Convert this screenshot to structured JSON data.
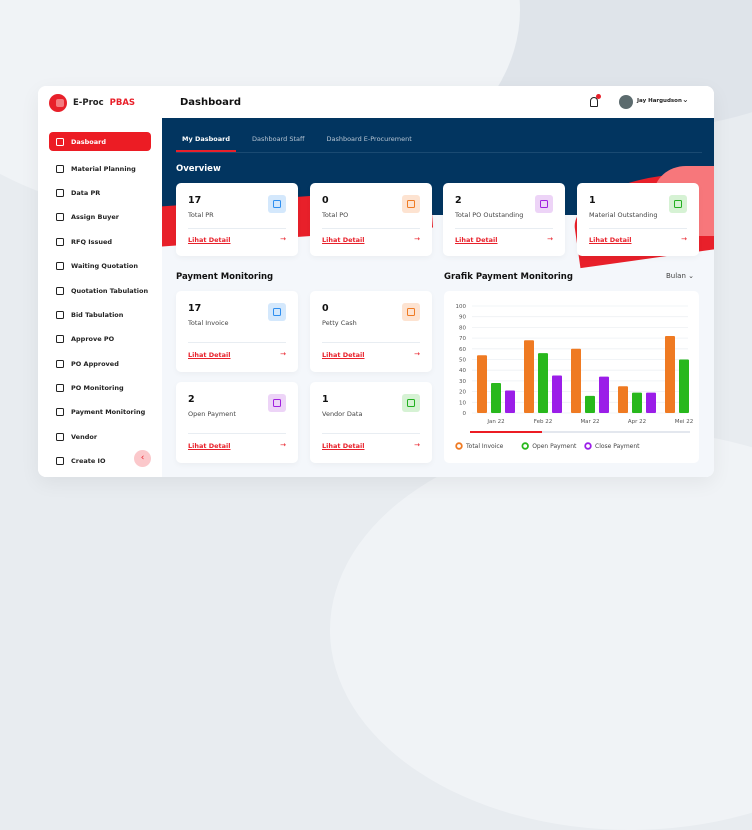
{
  "app": {
    "brand": "E-Proc",
    "brand_accent": "PBAS",
    "accent": "#ec1c24",
    "navy": "#023560"
  },
  "sidebar": {
    "items": [
      {
        "label": "Dasboard",
        "icon": "grid-icon",
        "active": true
      },
      {
        "label": "Material Planning",
        "icon": "clipboard-check-icon"
      },
      {
        "label": "Data PR",
        "icon": "document-icon"
      },
      {
        "label": "Assign Buyer",
        "icon": "user-assign-icon"
      },
      {
        "label": "RFQ Issued",
        "icon": "document-lock-icon"
      },
      {
        "label": "Waiting Quotation",
        "icon": "document-clock-icon"
      },
      {
        "label": "Quotation Tabulation",
        "icon": "document-table-icon"
      },
      {
        "label": "Bid Tabulation",
        "icon": "document-list-icon"
      },
      {
        "label": "Approve PO",
        "icon": "cart-check-icon"
      },
      {
        "label": "PO Approved",
        "icon": "cart-icon"
      },
      {
        "label": "PO Monitoring",
        "icon": "cart-monitor-icon"
      },
      {
        "label": "Payment Monitoring",
        "icon": "card-icon"
      },
      {
        "label": "Vendor",
        "icon": "store-icon"
      },
      {
        "label": "Create IO",
        "icon": "io-icon"
      }
    ],
    "collapse_icon": "chevron-left-icon"
  },
  "header": {
    "title": "Dashboard",
    "user": "Jay Hargudson",
    "notification": true
  },
  "tabs": [
    {
      "label": "My Dasboard",
      "active": true
    },
    {
      "label": "Dashboard Staff"
    },
    {
      "label": "Dashboard E-Procurement"
    }
  ],
  "overview": {
    "title": "Overview",
    "cards": [
      {
        "value": "17",
        "label": "Total PR",
        "link": "Lihat Detail",
        "icon": "document-icon",
        "color": "#2f8ff0",
        "bg": "#d4e8fc"
      },
      {
        "value": "0",
        "label": "Total PO",
        "link": "Lihat Detail",
        "icon": "cart-icon",
        "color": "#ef7a22",
        "bg": "#fde3d1"
      },
      {
        "value": "2",
        "label": "Total PO Outstanding",
        "link": "Lihat Detail",
        "icon": "cart-outstanding-icon",
        "color": "#a020e0",
        "bg": "#edd4f7"
      },
      {
        "value": "1",
        "label": "Material Outstanding",
        "link": "Lihat Detail",
        "icon": "star-icon",
        "color": "#22b01f",
        "bg": "#d6f2d4"
      }
    ]
  },
  "payment": {
    "title": "Payment Monitoring",
    "cards": [
      {
        "value": "17",
        "label": "Total Invoice",
        "link": "Lihat Detail",
        "icon": "invoice-icon",
        "color": "#2f8ff0",
        "bg": "#d4e8fc"
      },
      {
        "value": "0",
        "label": "Petty Cash",
        "link": "Lihat Detail",
        "icon": "cash-icon",
        "color": "#ef7a22",
        "bg": "#fde3d1"
      },
      {
        "value": "2",
        "label": "Open Payment",
        "link": "Lihat Detail",
        "icon": "credit-card-icon",
        "color": "#a020e0",
        "bg": "#edd4f7"
      },
      {
        "value": "1",
        "label": "Vendor Data",
        "link": "Lihat Detail",
        "icon": "store-icon",
        "color": "#22b01f",
        "bg": "#d6f2d4"
      }
    ]
  },
  "grafik": {
    "title": "Grafik Payment Monitoring",
    "period": "Bulan"
  },
  "chart_data": {
    "type": "bar",
    "categories": [
      "Jan 22",
      "Feb 22",
      "Mar 22",
      "Apr 22",
      "Mei 22"
    ],
    "ylim": [
      0,
      100
    ],
    "yticks": [
      0,
      10,
      20,
      30,
      40,
      50,
      60,
      70,
      80,
      90,
      100
    ],
    "grid": true,
    "legend": "bottom-left",
    "series": [
      {
        "name": "Total Invoice",
        "color": "#ef7a22",
        "values": [
          54,
          68,
          60,
          25,
          72
        ]
      },
      {
        "name": "Open Payment",
        "color": "#28b81c",
        "values": [
          28,
          56,
          16,
          19,
          50
        ]
      },
      {
        "name": "Close Payment",
        "color": "#9b1ee8",
        "values": [
          21,
          35,
          34,
          19,
          null
        ]
      }
    ]
  }
}
